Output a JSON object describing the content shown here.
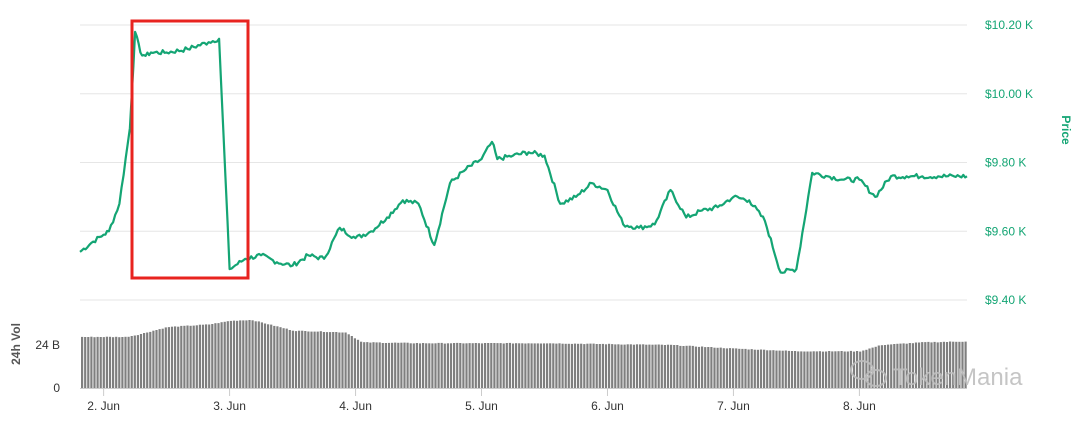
{
  "chart_data": [
    {
      "type": "line",
      "x_axis": {
        "type": "datetime",
        "range": [
          "2020-06-01T19:30",
          "2020-06-08T20:30"
        ],
        "tick_labels": [
          "2. Jun",
          "3. Jun",
          "4. Jun",
          "5. Jun",
          "6. Jun",
          "7. Jun",
          "8. Jun"
        ]
      },
      "y_axis": {
        "label": "Price",
        "position": "right",
        "tick_labels": [
          "$9.40 K",
          "$9.60 K",
          "$9.80 K",
          "$10.00 K",
          "$10.20 K"
        ],
        "ticks": [
          9400,
          9600,
          9800,
          10000,
          10200
        ],
        "range": [
          9400,
          10250
        ]
      },
      "grid": true,
      "color": "#14a574",
      "series": [
        {
          "x": [
            "2020-06-01T19:30",
            "2020-06-01T22:00",
            "2020-06-02T00:00",
            "2020-06-02T01:00",
            "2020-06-02T03:00",
            "2020-06-02T05:00",
            "2020-06-02T06:00",
            "2020-06-02T07:00",
            "2020-06-02T08:00",
            "2020-06-02T09:00",
            "2020-06-02T12:00",
            "2020-06-02T16:00",
            "2020-06-02T20:00",
            "2020-06-02T22:00",
            "2020-06-03T00:00",
            "2020-06-03T03:00",
            "2020-06-03T06:00",
            "2020-06-03T09:00",
            "2020-06-03T12:00",
            "2020-06-03T15:00",
            "2020-06-03T18:00",
            "2020-06-03T21:00",
            "2020-06-04T00:00",
            "2020-06-04T03:00",
            "2020-06-04T06:00",
            "2020-06-04T09:00",
            "2020-06-04T12:00",
            "2020-06-04T15:00",
            "2020-06-04T18:00",
            "2020-06-04T21:00",
            "2020-06-05T00:00",
            "2020-06-05T02:00",
            "2020-06-05T03:00",
            "2020-06-05T06:00",
            "2020-06-05T09:00",
            "2020-06-05T12:00",
            "2020-06-05T15:00",
            "2020-06-05T18:00",
            "2020-06-05T21:00",
            "2020-06-06T00:00",
            "2020-06-06T03:00",
            "2020-06-06T06:00",
            "2020-06-06T09:00",
            "2020-06-06T12:00",
            "2020-06-06T15:00",
            "2020-06-06T18:00",
            "2020-06-06T21:00",
            "2020-06-07T00:00",
            "2020-06-07T03:00",
            "2020-06-07T06:00",
            "2020-06-07T09:00",
            "2020-06-07T12:00",
            "2020-06-07T15:00",
            "2020-06-07T18:00",
            "2020-06-07T21:00",
            "2020-06-08T00:00",
            "2020-06-08T03:00",
            "2020-06-08T06:00",
            "2020-06-08T09:00",
            "2020-06-08T12:00",
            "2020-06-08T15:00",
            "2020-06-08T18:00",
            "2020-06-08T20:30"
          ],
          "y": [
            9540,
            9570,
            9590,
            9600,
            9680,
            9900,
            10180,
            10120,
            10110,
            10120,
            10120,
            10130,
            10150,
            10160,
            9490,
            9520,
            9530,
            9510,
            9500,
            9530,
            9520,
            9610,
            9580,
            9600,
            9640,
            9690,
            9680,
            9560,
            9740,
            9780,
            9810,
            9860,
            9810,
            9820,
            9830,
            9820,
            9680,
            9700,
            9740,
            9720,
            9620,
            9610,
            9620,
            9720,
            9640,
            9660,
            9670,
            9700,
            9690,
            9630,
            9480,
            9490,
            9770,
            9760,
            9750,
            9750,
            9700,
            9760,
            9760,
            9760,
            9760,
            9760,
            9760
          ]
        }
      ]
    },
    {
      "type": "bar",
      "y_axis": {
        "label": "24h Vol",
        "position": "left",
        "tick_labels": [
          "0",
          "24 B"
        ],
        "ticks": [
          0,
          24
        ]
      },
      "color": "#7f7f7f",
      "series": [
        {
          "x": [
            "2020-06-01T19:30",
            "2020-06-02T04:00",
            "2020-06-02T06:00",
            "2020-06-02T12:00",
            "2020-06-02T20:00",
            "2020-06-03T00:00",
            "2020-06-03T04:00",
            "2020-06-03T12:00",
            "2020-06-03T22:00",
            "2020-06-04T01:00",
            "2020-06-04T12:00",
            "2020-06-05T00:00",
            "2020-06-05T12:00",
            "2020-06-06T00:00",
            "2020-06-06T12:00",
            "2020-06-07T00:00",
            "2020-06-07T12:00",
            "2020-06-08T00:00",
            "2020-06-08T04:00",
            "2020-06-08T12:00",
            "2020-06-08T20:30"
          ],
          "y": [
            28.5,
            28.5,
            29.5,
            34,
            35.5,
            37.5,
            38,
            32,
            31,
            25.5,
            25,
            25,
            25,
            24.5,
            24,
            22,
            20.5,
            20.5,
            24,
            25.5,
            26
          ]
        }
      ]
    }
  ],
  "watermark": "TokenMania"
}
